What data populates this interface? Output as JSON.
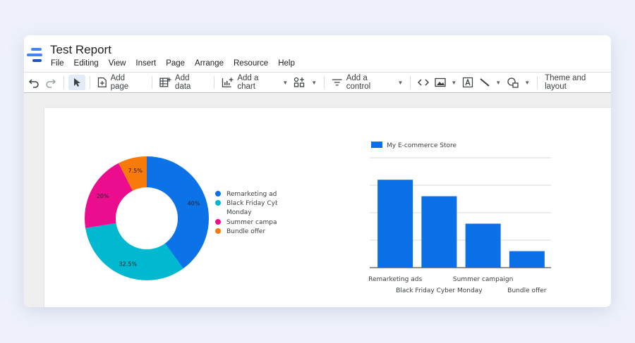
{
  "app": {
    "title": "Test Report",
    "menu": [
      "File",
      "Editing",
      "View",
      "Insert",
      "Page",
      "Arrange",
      "Resource",
      "Help"
    ]
  },
  "toolbar": {
    "undo_icon": "undo-icon",
    "redo_icon": "redo-icon",
    "select_icon": "cursor-icon",
    "add_page": "Add page",
    "add_data": "Add data",
    "add_chart": "Add a chart",
    "add_control": "Add a control",
    "theme": "Theme and layout"
  },
  "colors": {
    "blue": "#0b72e7",
    "teal": "#00b8cf",
    "pink": "#ec0c8e",
    "orange": "#f77a0b",
    "bar": "#0b6fe8"
  },
  "chart_data": [
    {
      "type": "pie",
      "donut": true,
      "legend": "right",
      "slices": [
        {
          "label": "Remarketing ads",
          "value": 40,
          "display": "40%",
          "color": "#0b72e7"
        },
        {
          "label": "Black Friday Cyber Monday",
          "value": 32.5,
          "display": "32.5%",
          "color": "#00b8cf"
        },
        {
          "label": "Summer campaign",
          "value": 20,
          "display": "20%",
          "color": "#ec0c8e"
        },
        {
          "label": "Bundle offer",
          "value": 7.5,
          "display": "7.5%",
          "color": "#f77a0b"
        }
      ]
    },
    {
      "type": "bar",
      "legend": "top-left",
      "categories": [
        "Remarketing ads",
        "Black Friday Cyber Monday",
        "Summer campaign",
        "Bundle offer"
      ],
      "series": [
        {
          "name": "My E-commerce Store",
          "values": [
            32,
            26,
            16,
            6
          ],
          "color": "#0b6fe8"
        }
      ],
      "ylim": [
        0,
        40
      ],
      "yticks": [
        0,
        10,
        20,
        30,
        40
      ],
      "grid": true
    }
  ]
}
